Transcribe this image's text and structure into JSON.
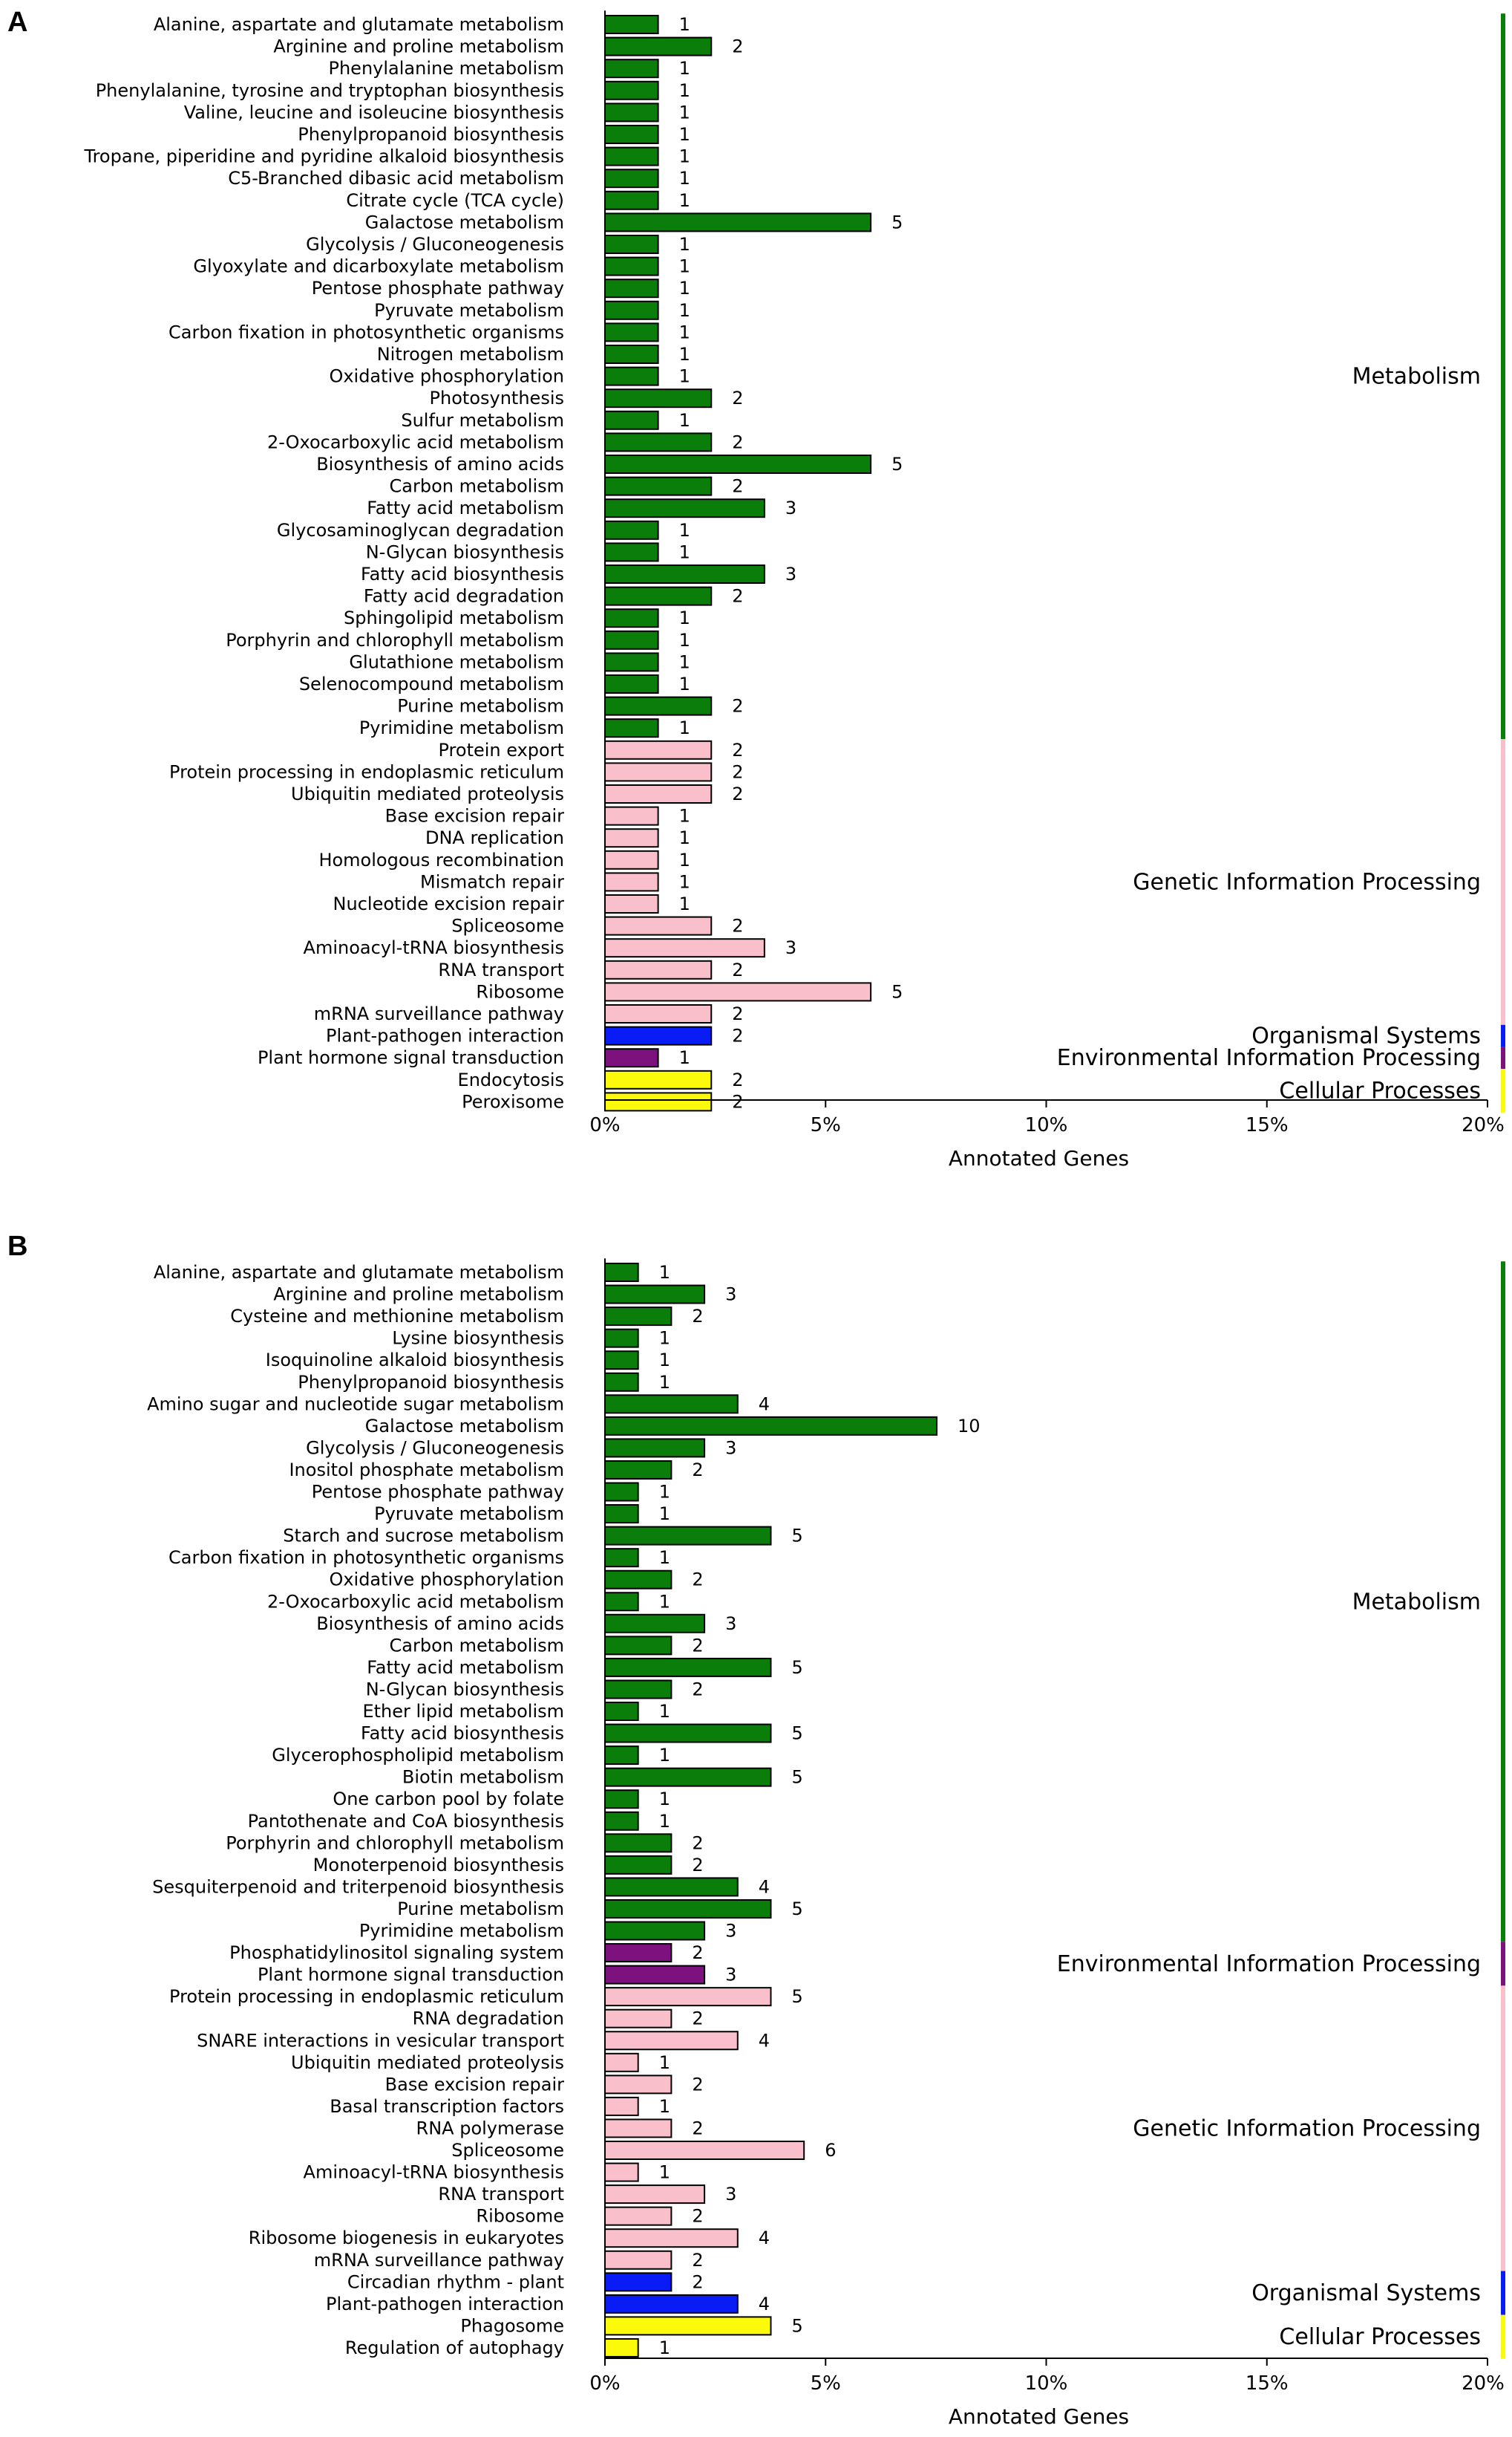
{
  "colors": {
    "Metabolism": "#0b7d0b",
    "Genetic Information Processing": "#f9c0cb",
    "Environmental Information Processing": "#7d117d",
    "Organismal Systems": "#0a1cf5",
    "Cellular Processes": "#fafa0a",
    "outline": "#000000"
  },
  "chart_data": [
    {
      "type": "bar",
      "panel_label": "A",
      "orientation": "horizontal",
      "xlabel": "Annotated Genes",
      "x_ticks": [
        "0%",
        "5%",
        "10%",
        "15%",
        "20%"
      ],
      "xlim": [
        0,
        20
      ],
      "unit": "% of annotated genes (bar values are gene counts)",
      "categories": [
        {
          "label": "Alanine, aspartate and glutamate metabolism",
          "value": 1,
          "group": "Metabolism"
        },
        {
          "label": "Arginine and proline metabolism",
          "value": 2,
          "group": "Metabolism"
        },
        {
          "label": "Phenylalanine metabolism",
          "value": 1,
          "group": "Metabolism"
        },
        {
          "label": "Phenylalanine, tyrosine and tryptophan biosynthesis",
          "value": 1,
          "group": "Metabolism"
        },
        {
          "label": "Valine, leucine and isoleucine biosynthesis",
          "value": 1,
          "group": "Metabolism"
        },
        {
          "label": "Phenylpropanoid biosynthesis",
          "value": 1,
          "group": "Metabolism"
        },
        {
          "label": "Tropane, piperidine and pyridine alkaloid biosynthesis",
          "value": 1,
          "group": "Metabolism"
        },
        {
          "label": "C5-Branched dibasic acid metabolism",
          "value": 1,
          "group": "Metabolism"
        },
        {
          "label": "Citrate cycle (TCA cycle)",
          "value": 1,
          "group": "Metabolism"
        },
        {
          "label": "Galactose metabolism",
          "value": 5,
          "group": "Metabolism"
        },
        {
          "label": "Glycolysis / Gluconeogenesis",
          "value": 1,
          "group": "Metabolism"
        },
        {
          "label": "Glyoxylate and dicarboxylate metabolism",
          "value": 1,
          "group": "Metabolism"
        },
        {
          "label": "Pentose phosphate pathway",
          "value": 1,
          "group": "Metabolism"
        },
        {
          "label": "Pyruvate metabolism",
          "value": 1,
          "group": "Metabolism"
        },
        {
          "label": "Carbon fixation in photosynthetic organisms",
          "value": 1,
          "group": "Metabolism"
        },
        {
          "label": "Nitrogen metabolism",
          "value": 1,
          "group": "Metabolism"
        },
        {
          "label": "Oxidative phosphorylation",
          "value": 1,
          "group": "Metabolism"
        },
        {
          "label": "Photosynthesis",
          "value": 2,
          "group": "Metabolism"
        },
        {
          "label": "Sulfur metabolism",
          "value": 1,
          "group": "Metabolism"
        },
        {
          "label": "2-Oxocarboxylic acid metabolism",
          "value": 2,
          "group": "Metabolism"
        },
        {
          "label": "Biosynthesis of amino acids",
          "value": 5,
          "group": "Metabolism"
        },
        {
          "label": "Carbon metabolism",
          "value": 2,
          "group": "Metabolism"
        },
        {
          "label": "Fatty acid metabolism",
          "value": 3,
          "group": "Metabolism"
        },
        {
          "label": "Glycosaminoglycan degradation",
          "value": 1,
          "group": "Metabolism"
        },
        {
          "label": "N-Glycan biosynthesis",
          "value": 1,
          "group": "Metabolism"
        },
        {
          "label": "Fatty acid biosynthesis",
          "value": 3,
          "group": "Metabolism"
        },
        {
          "label": "Fatty acid degradation",
          "value": 2,
          "group": "Metabolism"
        },
        {
          "label": "Sphingolipid metabolism",
          "value": 1,
          "group": "Metabolism"
        },
        {
          "label": "Porphyrin and chlorophyll metabolism",
          "value": 1,
          "group": "Metabolism"
        },
        {
          "label": "Glutathione metabolism",
          "value": 1,
          "group": "Metabolism"
        },
        {
          "label": "Selenocompound metabolism",
          "value": 1,
          "group": "Metabolism"
        },
        {
          "label": "Purine metabolism",
          "value": 2,
          "group": "Metabolism"
        },
        {
          "label": "Pyrimidine metabolism",
          "value": 1,
          "group": "Metabolism"
        },
        {
          "label": "Protein export",
          "value": 2,
          "group": "Genetic Information Processing"
        },
        {
          "label": "Protein processing in endoplasmic reticulum",
          "value": 2,
          "group": "Genetic Information Processing"
        },
        {
          "label": "Ubiquitin mediated proteolysis",
          "value": 2,
          "group": "Genetic Information Processing"
        },
        {
          "label": "Base excision repair",
          "value": 1,
          "group": "Genetic Information Processing"
        },
        {
          "label": "DNA replication",
          "value": 1,
          "group": "Genetic Information Processing"
        },
        {
          "label": "Homologous recombination",
          "value": 1,
          "group": "Genetic Information Processing"
        },
        {
          "label": "Mismatch repair",
          "value": 1,
          "group": "Genetic Information Processing"
        },
        {
          "label": "Nucleotide excision repair",
          "value": 1,
          "group": "Genetic Information Processing"
        },
        {
          "label": "Spliceosome",
          "value": 2,
          "group": "Genetic Information Processing"
        },
        {
          "label": "Aminoacyl-tRNA biosynthesis",
          "value": 3,
          "group": "Genetic Information Processing"
        },
        {
          "label": "RNA transport",
          "value": 2,
          "group": "Genetic Information Processing"
        },
        {
          "label": "Ribosome",
          "value": 5,
          "group": "Genetic Information Processing"
        },
        {
          "label": "mRNA surveillance pathway",
          "value": 2,
          "group": "Genetic Information Processing"
        },
        {
          "label": "Plant-pathogen interaction",
          "value": 2,
          "group": "Organismal Systems"
        },
        {
          "label": "Plant hormone signal transduction",
          "value": 1,
          "group": "Environmental Information Processing"
        },
        {
          "label": "Endocytosis",
          "value": 2,
          "group": "Cellular Processes"
        },
        {
          "label": "Peroxisome",
          "value": 2,
          "group": "Cellular Processes"
        }
      ],
      "groups": [
        {
          "name": "Metabolism",
          "label": "Metabolism"
        },
        {
          "name": "Genetic Information Processing",
          "label": "Genetic Information Processing"
        },
        {
          "name": "Organismal Systems",
          "label": "Organismal Systems"
        },
        {
          "name": "Environmental Information Processing",
          "label": "Environmental Information Processing"
        },
        {
          "name": "Cellular Processes",
          "label": "Cellular Processes"
        }
      ]
    },
    {
      "type": "bar",
      "panel_label": "B",
      "orientation": "horizontal",
      "xlabel": "Annotated Genes",
      "x_ticks": [
        "0%",
        "5%",
        "10%",
        "15%",
        "20%"
      ],
      "xlim": [
        0,
        20
      ],
      "unit": "% of annotated genes (bar values are gene counts)",
      "categories": [
        {
          "label": "Alanine, aspartate and glutamate metabolism",
          "value": 1,
          "group": "Metabolism"
        },
        {
          "label": "Arginine and proline metabolism",
          "value": 3,
          "group": "Metabolism"
        },
        {
          "label": "Cysteine and methionine metabolism",
          "value": 2,
          "group": "Metabolism"
        },
        {
          "label": "Lysine biosynthesis",
          "value": 1,
          "group": "Metabolism"
        },
        {
          "label": "Isoquinoline alkaloid biosynthesis",
          "value": 1,
          "group": "Metabolism"
        },
        {
          "label": "Phenylpropanoid biosynthesis",
          "value": 1,
          "group": "Metabolism"
        },
        {
          "label": "Amino sugar and nucleotide sugar metabolism",
          "value": 4,
          "group": "Metabolism"
        },
        {
          "label": "Galactose metabolism",
          "value": 10,
          "group": "Metabolism"
        },
        {
          "label": "Glycolysis / Gluconeogenesis",
          "value": 3,
          "group": "Metabolism"
        },
        {
          "label": "Inositol phosphate metabolism",
          "value": 2,
          "group": "Metabolism"
        },
        {
          "label": "Pentose phosphate pathway",
          "value": 1,
          "group": "Metabolism"
        },
        {
          "label": "Pyruvate metabolism",
          "value": 1,
          "group": "Metabolism"
        },
        {
          "label": "Starch and sucrose metabolism",
          "value": 5,
          "group": "Metabolism"
        },
        {
          "label": "Carbon fixation in photosynthetic organisms",
          "value": 1,
          "group": "Metabolism"
        },
        {
          "label": "Oxidative phosphorylation",
          "value": 2,
          "group": "Metabolism"
        },
        {
          "label": "2-Oxocarboxylic acid metabolism",
          "value": 1,
          "group": "Metabolism"
        },
        {
          "label": "Biosynthesis of amino acids",
          "value": 3,
          "group": "Metabolism"
        },
        {
          "label": "Carbon metabolism",
          "value": 2,
          "group": "Metabolism"
        },
        {
          "label": "Fatty acid metabolism",
          "value": 5,
          "group": "Metabolism"
        },
        {
          "label": "N-Glycan biosynthesis",
          "value": 2,
          "group": "Metabolism"
        },
        {
          "label": "Ether lipid metabolism",
          "value": 1,
          "group": "Metabolism"
        },
        {
          "label": "Fatty acid biosynthesis",
          "value": 5,
          "group": "Metabolism"
        },
        {
          "label": "Glycerophospholipid metabolism",
          "value": 1,
          "group": "Metabolism"
        },
        {
          "label": "Biotin metabolism",
          "value": 5,
          "group": "Metabolism"
        },
        {
          "label": "One carbon pool by folate",
          "value": 1,
          "group": "Metabolism"
        },
        {
          "label": "Pantothenate and CoA biosynthesis",
          "value": 1,
          "group": "Metabolism"
        },
        {
          "label": "Porphyrin and chlorophyll metabolism",
          "value": 2,
          "group": "Metabolism"
        },
        {
          "label": "Monoterpenoid biosynthesis",
          "value": 2,
          "group": "Metabolism"
        },
        {
          "label": "Sesquiterpenoid and triterpenoid biosynthesis",
          "value": 4,
          "group": "Metabolism"
        },
        {
          "label": "Purine metabolism",
          "value": 5,
          "group": "Metabolism"
        },
        {
          "label": "Pyrimidine metabolism",
          "value": 3,
          "group": "Metabolism"
        },
        {
          "label": "Phosphatidylinositol signaling system",
          "value": 2,
          "group": "Environmental Information Processing"
        },
        {
          "label": "Plant hormone signal transduction",
          "value": 3,
          "group": "Environmental Information Processing"
        },
        {
          "label": "Protein processing in endoplasmic reticulum",
          "value": 5,
          "group": "Genetic Information Processing"
        },
        {
          "label": "RNA degradation",
          "value": 2,
          "group": "Genetic Information Processing"
        },
        {
          "label": "SNARE interactions in vesicular transport",
          "value": 4,
          "group": "Genetic Information Processing"
        },
        {
          "label": "Ubiquitin mediated proteolysis",
          "value": 1,
          "group": "Genetic Information Processing"
        },
        {
          "label": "Base excision repair",
          "value": 2,
          "group": "Genetic Information Processing"
        },
        {
          "label": "Basal transcription factors",
          "value": 1,
          "group": "Genetic Information Processing"
        },
        {
          "label": "RNA polymerase",
          "value": 2,
          "group": "Genetic Information Processing"
        },
        {
          "label": "Spliceosome",
          "value": 6,
          "group": "Genetic Information Processing"
        },
        {
          "label": "Aminoacyl-tRNA biosynthesis",
          "value": 1,
          "group": "Genetic Information Processing"
        },
        {
          "label": "RNA transport",
          "value": 3,
          "group": "Genetic Information Processing"
        },
        {
          "label": "Ribosome",
          "value": 2,
          "group": "Genetic Information Processing"
        },
        {
          "label": "Ribosome biogenesis in eukaryotes",
          "value": 4,
          "group": "Genetic Information Processing"
        },
        {
          "label": "mRNA surveillance pathway",
          "value": 2,
          "group": "Genetic Information Processing"
        },
        {
          "label": "Circadian rhythm - plant",
          "value": 2,
          "group": "Organismal Systems"
        },
        {
          "label": "Plant-pathogen interaction",
          "value": 4,
          "group": "Organismal Systems"
        },
        {
          "label": "Phagosome",
          "value": 5,
          "group": "Cellular Processes"
        },
        {
          "label": "Regulation of autophagy",
          "value": 1,
          "group": "Cellular Processes"
        }
      ],
      "groups": [
        {
          "name": "Metabolism",
          "label": "Metabolism"
        },
        {
          "name": "Environmental Information Processing",
          "label": "Environmental Information Processing"
        },
        {
          "name": "Genetic Information Processing",
          "label": "Genetic Information Processing"
        },
        {
          "name": "Organismal Systems",
          "label": "Organismal Systems"
        },
        {
          "name": "Cellular Processes",
          "label": "Cellular Processes"
        }
      ]
    }
  ]
}
